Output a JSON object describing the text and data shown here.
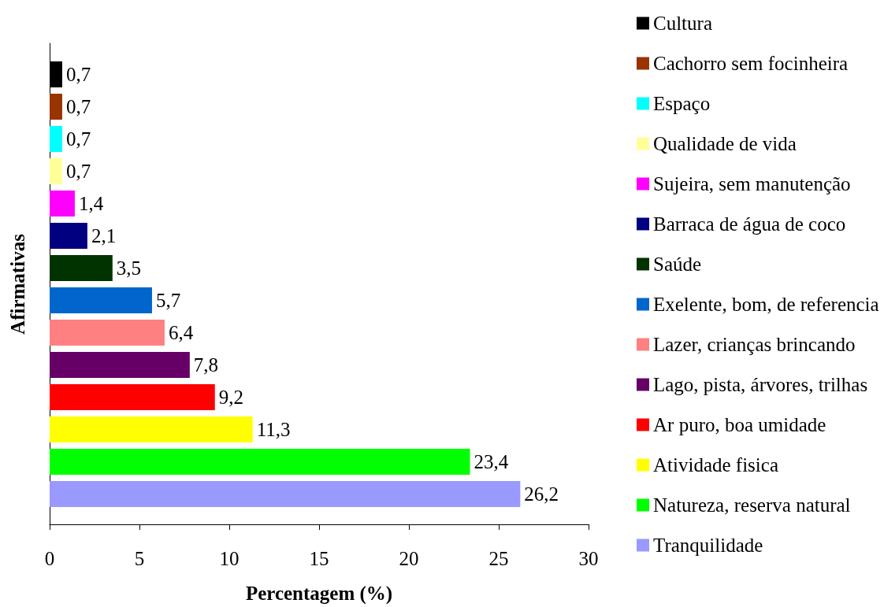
{
  "chart_data": {
    "type": "bar",
    "orientation": "horizontal",
    "stacked": true,
    "xlabel": "Percentagem (%)",
    "ylabel": "Afirmativas",
    "categories": [
      null,
      null,
      null,
      null,
      null,
      null,
      null,
      null,
      null,
      null,
      null,
      null,
      null,
      null
    ],
    "series": [
      {
        "name": "Cultura",
        "color": "#000000",
        "values": [
          0.7,
          null,
          null,
          null,
          null,
          null,
          null,
          null,
          null,
          null,
          null,
          null,
          null,
          null
        ],
        "value_labels": [
          "0,7",
          null,
          null,
          null,
          null,
          null,
          null,
          null,
          null,
          null,
          null,
          null,
          null,
          null
        ]
      },
      {
        "name": "Cachorro sem focinheira",
        "color": "#993300",
        "values": [
          null,
          0.7,
          null,
          null,
          null,
          null,
          null,
          null,
          null,
          null,
          null,
          null,
          null,
          null
        ],
        "value_labels": [
          null,
          "0,7",
          null,
          null,
          null,
          null,
          null,
          null,
          null,
          null,
          null,
          null,
          null,
          null
        ]
      },
      {
        "name": "Espaço",
        "color": "#00ffff",
        "values": [
          null,
          null,
          0.7,
          null,
          null,
          null,
          null,
          null,
          null,
          null,
          null,
          null,
          null,
          null
        ],
        "value_labels": [
          null,
          null,
          "0,7",
          null,
          null,
          null,
          null,
          null,
          null,
          null,
          null,
          null,
          null,
          null
        ]
      },
      {
        "name": "Qualidade de vida",
        "color": "#ffff99",
        "values": [
          null,
          null,
          null,
          0.7,
          null,
          null,
          null,
          null,
          null,
          null,
          null,
          null,
          null,
          null
        ],
        "value_labels": [
          null,
          null,
          null,
          "0,7",
          null,
          null,
          null,
          null,
          null,
          null,
          null,
          null,
          null,
          null
        ]
      },
      {
        "name": "Sujeira, sem manutenção",
        "color": "#ff00ff",
        "values": [
          null,
          null,
          null,
          null,
          1.4,
          null,
          null,
          null,
          null,
          null,
          null,
          null,
          null,
          null
        ],
        "value_labels": [
          null,
          null,
          null,
          null,
          "1,4",
          null,
          null,
          null,
          null,
          null,
          null,
          null,
          null,
          null
        ]
      },
      {
        "name": "Barraca de água de coco",
        "color": "#000080",
        "values": [
          null,
          null,
          null,
          null,
          null,
          2.1,
          null,
          null,
          null,
          null,
          null,
          null,
          null,
          null
        ],
        "value_labels": [
          null,
          null,
          null,
          null,
          null,
          "2,1",
          null,
          null,
          null,
          null,
          null,
          null,
          null,
          null
        ]
      },
      {
        "name": "Saúde",
        "color": "#003300",
        "values": [
          null,
          null,
          null,
          null,
          null,
          null,
          3.5,
          null,
          null,
          null,
          null,
          null,
          null,
          null
        ],
        "value_labels": [
          null,
          null,
          null,
          null,
          null,
          null,
          "3,5",
          null,
          null,
          null,
          null,
          null,
          null,
          null
        ]
      },
      {
        "name": "Exelente, bom, de referencia",
        "color": "#0066cc",
        "values": [
          null,
          null,
          null,
          null,
          null,
          null,
          null,
          5.7,
          null,
          null,
          null,
          null,
          null,
          null
        ],
        "value_labels": [
          null,
          null,
          null,
          null,
          null,
          null,
          null,
          "5,7",
          null,
          null,
          null,
          null,
          null,
          null
        ]
      },
      {
        "name": "Lazer, crianças brincando",
        "color": "#ff8080",
        "values": [
          null,
          null,
          null,
          null,
          null,
          null,
          null,
          null,
          6.4,
          null,
          null,
          null,
          null,
          null
        ],
        "value_labels": [
          null,
          null,
          null,
          null,
          null,
          null,
          null,
          null,
          "6,4",
          null,
          null,
          null,
          null,
          null
        ]
      },
      {
        "name": "Lago, pista, árvores, trilhas",
        "color": "#660066",
        "values": [
          null,
          null,
          null,
          null,
          null,
          null,
          null,
          null,
          null,
          7.8,
          null,
          null,
          null,
          null
        ],
        "value_labels": [
          null,
          null,
          null,
          null,
          null,
          null,
          null,
          null,
          null,
          "7,8",
          null,
          null,
          null,
          null
        ]
      },
      {
        "name": "Ar puro, boa umidade",
        "color": "#ff0000",
        "values": [
          null,
          null,
          null,
          null,
          null,
          null,
          null,
          null,
          null,
          null,
          9.2,
          null,
          null,
          null
        ],
        "value_labels": [
          null,
          null,
          null,
          null,
          null,
          null,
          null,
          null,
          null,
          null,
          "9,2",
          null,
          null,
          null
        ]
      },
      {
        "name": "Atividade fisica",
        "color": "#ffff00",
        "values": [
          null,
          null,
          null,
          null,
          null,
          null,
          null,
          null,
          null,
          null,
          null,
          11.3,
          null,
          null
        ],
        "value_labels": [
          null,
          null,
          null,
          null,
          null,
          null,
          null,
          null,
          null,
          null,
          null,
          "11,3",
          null,
          null
        ]
      },
      {
        "name": "Natureza, reserva natural",
        "color": "#00ff00",
        "values": [
          null,
          null,
          null,
          null,
          null,
          null,
          null,
          null,
          null,
          null,
          null,
          null,
          23.4,
          null
        ],
        "value_labels": [
          null,
          null,
          null,
          null,
          null,
          null,
          null,
          null,
          null,
          null,
          null,
          null,
          "23,4",
          null
        ]
      },
      {
        "name": "Tranquilidade",
        "color": "#9999ff",
        "values": [
          null,
          null,
          null,
          null,
          null,
          null,
          null,
          null,
          null,
          null,
          null,
          null,
          null,
          26.2
        ],
        "value_labels": [
          null,
          null,
          null,
          null,
          null,
          null,
          null,
          null,
          null,
          null,
          null,
          null,
          null,
          "26,2"
        ]
      }
    ],
    "xlim": [
      0,
      30
    ],
    "xticks": [
      0,
      5,
      10,
      15,
      20,
      25,
      30
    ],
    "legend": "right",
    "tick_labels": "x",
    "grid": false
  }
}
